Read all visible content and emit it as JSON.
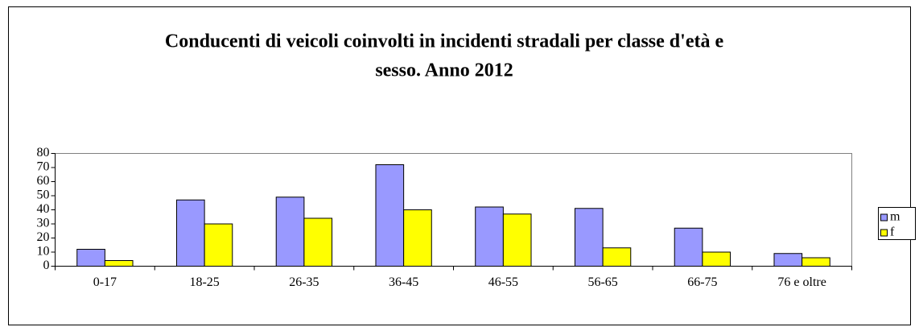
{
  "chart_data": {
    "type": "bar",
    "title": [
      "Conducenti di veicoli coinvolti in incidenti stradali per classe d'età e",
      "sesso. Anno 2012"
    ],
    "categories": [
      "0-17",
      "18-25",
      "26-35",
      "36-45",
      "46-55",
      "56-65",
      "66-75",
      "76 e oltre"
    ],
    "series": [
      {
        "name": "m",
        "color": "#9999ff",
        "values": [
          12,
          47,
          49,
          72,
          42,
          41,
          27,
          9
        ]
      },
      {
        "name": "f",
        "color": "#ffff00",
        "values": [
          4,
          30,
          34,
          40,
          37,
          13,
          10,
          6
        ]
      }
    ],
    "ylim": [
      0,
      80
    ],
    "yticks": [
      0,
      10,
      20,
      30,
      40,
      50,
      60,
      70,
      80
    ],
    "grid": false,
    "legend": "right"
  }
}
